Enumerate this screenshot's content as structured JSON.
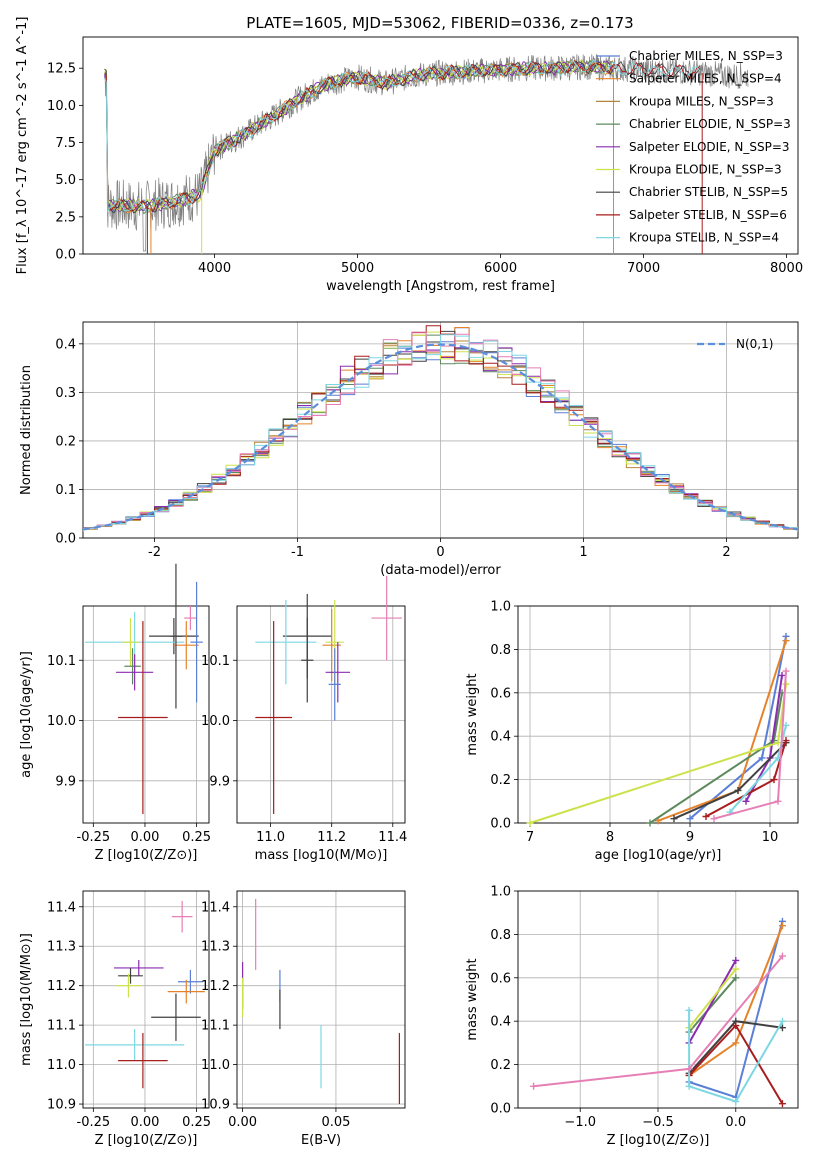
{
  "figure_title": "PLATE=1605, MJD=53062, FIBERID=0336, z=0.173",
  "colors": {
    "chabrier_miles": "#5b7fd6",
    "salpeter_miles": "#e6832a",
    "kroupa_miles": "#b5853b",
    "chabrier_elodie": "#5d8a5d",
    "salpeter_elodie": "#8a2bb0",
    "kroupa_elodie": "#cde24a",
    "chabrier_stelib": "#404040",
    "salpeter_stelib": "#a81d1d",
    "kroupa_stelib": "#7dd7e2",
    "data": "#808080",
    "gaussian": "#5b8fdb",
    "pink": "#e67fb5",
    "grid": "#b0b0b0"
  },
  "chart_data": [
    {
      "id": "spectrum",
      "type": "line",
      "title": "",
      "xlabel": "wavelength [Angstrom, rest frame]",
      "ylabel": "Flux [f_λ 10^-17 erg cm^-2 s^-1 A^-1]",
      "xlim": [
        3080,
        8080
      ],
      "ylim": [
        0,
        14.6
      ],
      "xticks": [
        4000,
        5000,
        6000,
        7000,
        8000
      ],
      "yticks": [
        0.0,
        2.5,
        5.0,
        7.5,
        10.0,
        12.5
      ],
      "ytick_labels": [
        "0.0",
        "2.5",
        "5.0",
        "7.5",
        "10.0",
        "12.5"
      ],
      "grid": false,
      "legend_position": "right",
      "continuum": [
        {
          "x": 3250,
          "y": 3.3
        },
        {
          "x": 3500,
          "y": 3.2
        },
        {
          "x": 3700,
          "y": 3.5
        },
        {
          "x": 3900,
          "y": 4.0
        },
        {
          "x": 4000,
          "y": 7.0
        },
        {
          "x": 4200,
          "y": 8.0
        },
        {
          "x": 4400,
          "y": 9.2
        },
        {
          "x": 4600,
          "y": 10.5
        },
        {
          "x": 4800,
          "y": 11.5
        },
        {
          "x": 5000,
          "y": 11.9
        },
        {
          "x": 5200,
          "y": 11.5
        },
        {
          "x": 5400,
          "y": 12.0
        },
        {
          "x": 5600,
          "y": 12.2
        },
        {
          "x": 5800,
          "y": 12.3
        },
        {
          "x": 6000,
          "y": 12.4
        },
        {
          "x": 6200,
          "y": 12.5
        },
        {
          "x": 6400,
          "y": 12.5
        },
        {
          "x": 6600,
          "y": 12.6
        },
        {
          "x": 6800,
          "y": 12.5
        },
        {
          "x": 7000,
          "y": 12.4
        },
        {
          "x": 7200,
          "y": 12.3
        },
        {
          "x": 7400,
          "y": 12.2
        },
        {
          "x": 7600,
          "y": 12.0
        },
        {
          "x": 7730,
          "y": 12.0
        }
      ],
      "series": [
        {
          "name": "Chabrier MILES, N_SSP=3",
          "color": "chabrier_miles",
          "xmax": 6800
        },
        {
          "name": "Salpeter MILES, N_SSP=4",
          "color": "salpeter_miles",
          "xmax": 6800
        },
        {
          "name": "Kroupa MILES, N_SSP=3",
          "color": "kroupa_miles",
          "xmax": 6800
        },
        {
          "name": "Chabrier ELODIE, N_SSP=3",
          "color": "chabrier_elodie",
          "xmax": 6800
        },
        {
          "name": "Salpeter ELODIE, N_SSP=3",
          "color": "salpeter_elodie",
          "xmax": 6800
        },
        {
          "name": "Kroupa ELODIE, N_SSP=3",
          "color": "kroupa_elodie",
          "xmax": 6800
        },
        {
          "name": "Chabrier STELIB, N_SSP=5",
          "color": "chabrier_stelib",
          "xmax": 7400
        },
        {
          "name": "Salpeter STELIB, N_SSP=6",
          "color": "salpeter_stelib",
          "xmax": 7400
        },
        {
          "name": "Kroupa STELIB, N_SSP=4",
          "color": "kroupa_stelib",
          "xmax": 7400
        }
      ]
    },
    {
      "id": "residuals",
      "type": "line",
      "title": "",
      "xlabel": "(data-model)/error",
      "ylabel": "Normed distribution",
      "xlim": [
        -2.5,
        2.5
      ],
      "ylim": [
        0,
        0.445
      ],
      "xticks": [
        -2,
        -1,
        0,
        1,
        2
      ],
      "yticks": [
        0.0,
        0.1,
        0.2,
        0.3,
        0.4
      ],
      "grid": true,
      "legend_position": "top-right",
      "legend": [
        "N(0,1)"
      ],
      "bin_width": 0.1
    },
    {
      "id": "age_vs_Z",
      "type": "scatter",
      "xlabel": "Z [log10(Z/Z⊙)]",
      "ylabel": "age [log10(age/yr)]",
      "xlim": [
        -0.3,
        0.31
      ],
      "ylim": [
        9.83,
        10.19
      ],
      "xticks": [
        -0.25,
        0.0,
        0.25
      ],
      "xtick_labels": [
        "-0.25",
        "0.00",
        "0.25"
      ],
      "yticks": [
        9.9,
        10.0,
        10.1
      ],
      "grid": true,
      "points": [
        {
          "x": 0.22,
          "y": 10.17,
          "xerr": 0.03,
          "yerr": 0.02,
          "color": "pink"
        },
        {
          "x": 0.14,
          "y": 10.14,
          "xerr": 0.12,
          "yerr": 0.03,
          "color": "chabrier_stelib"
        },
        {
          "x": 0.2,
          "y": 10.125,
          "xerr": 0.06,
          "yerr": 0.04,
          "color": "salpeter_miles"
        },
        {
          "x": -0.05,
          "y": 10.13,
          "xerr": 0.24,
          "yerr": 0.05,
          "color": "kroupa_stelib"
        },
        {
          "x": -0.07,
          "y": 10.13,
          "xerr": 0.04,
          "yerr": 0.04,
          "color": "kroupa_elodie"
        },
        {
          "x": -0.06,
          "y": 10.09,
          "xerr": 0.04,
          "yerr": 0.03,
          "color": "chabrier_elodie"
        },
        {
          "x": -0.05,
          "y": 10.08,
          "xerr": 0.09,
          "yerr": 0.03,
          "color": "salpeter_elodie"
        },
        {
          "x": 0.25,
          "y": 10.13,
          "xerr": 0.03,
          "yerr": 0.1,
          "color": "chabrier_miles"
        },
        {
          "x": 0.15,
          "y": 10.14,
          "xerr": 0.03,
          "yerr": 0.12,
          "color": "chabrier_stelib"
        },
        {
          "x": -0.01,
          "y": 10.005,
          "xerr": 0.12,
          "yerr": 0.16,
          "color": "salpeter_stelib"
        }
      ]
    },
    {
      "id": "age_vs_mass",
      "type": "scatter",
      "xlabel": "mass [log10(M/M⊙)]",
      "ylabel": "",
      "xlim": [
        10.89,
        11.44
      ],
      "ylim": [
        9.83,
        10.19
      ],
      "xticks": [
        11.0,
        11.2,
        11.4
      ],
      "xtick_labels": [
        "11.0",
        "11.2",
        "11.4"
      ],
      "yticks": [
        9.9,
        10.0,
        10.1
      ],
      "grid": true,
      "points": [
        {
          "x": 11.38,
          "y": 10.17,
          "xerr": 0.05,
          "yerr": 0.07,
          "color": "pink"
        },
        {
          "x": 11.12,
          "y": 10.14,
          "xerr": 0.08,
          "yerr": 0.07,
          "color": "chabrier_stelib"
        },
        {
          "x": 11.2,
          "y": 10.125,
          "xerr": 0.03,
          "yerr": 0.06,
          "color": "salpeter_miles"
        },
        {
          "x": 11.05,
          "y": 10.13,
          "xerr": 0.1,
          "yerr": 0.07,
          "color": "kroupa_stelib"
        },
        {
          "x": 11.21,
          "y": 10.13,
          "xerr": 0.03,
          "yerr": 0.07,
          "color": "kroupa_elodie"
        },
        {
          "x": 11.22,
          "y": 10.08,
          "xerr": 0.04,
          "yerr": 0.05,
          "color": "salpeter_elodie"
        },
        {
          "x": 11.21,
          "y": 10.06,
          "xerr": 0.02,
          "yerr": 0.06,
          "color": "chabrier_miles"
        },
        {
          "x": 11.12,
          "y": 10.1,
          "xerr": 0.02,
          "yerr": 0.07,
          "color": "chabrier_stelib"
        },
        {
          "x": 11.01,
          "y": 10.005,
          "xerr": 0.06,
          "yerr": 0.16,
          "color": "salpeter_stelib"
        }
      ]
    },
    {
      "id": "mass_weight_vs_age",
      "type": "line",
      "xlabel": "age [log10(age/yr)]",
      "ylabel": "mass weight",
      "xlim": [
        6.85,
        10.35
      ],
      "ylim": [
        0,
        1.0
      ],
      "xticks": [
        7,
        8,
        9,
        10
      ],
      "yticks": [
        0.0,
        0.2,
        0.4,
        0.6,
        0.8,
        1.0
      ],
      "grid": true,
      "series": [
        {
          "color": "chabrier_miles",
          "points": [
            [
              9.0,
              0.02
            ],
            [
              9.9,
              0.3
            ],
            [
              10.2,
              0.86
            ]
          ]
        },
        {
          "color": "salpeter_miles",
          "points": [
            [
              8.6,
              0.01
            ],
            [
              9.6,
              0.15
            ],
            [
              10.2,
              0.84
            ]
          ]
        },
        {
          "color": "chabrier_elodie",
          "points": [
            [
              8.5,
              0.0
            ],
            [
              10.05,
              0.38
            ],
            [
              10.15,
              0.6
            ]
          ]
        },
        {
          "color": "salpeter_elodie",
          "points": [
            [
              9.7,
              0.1
            ],
            [
              10.0,
              0.3
            ],
            [
              10.15,
              0.68
            ]
          ]
        },
        {
          "color": "kroupa_elodie",
          "points": [
            [
              7.0,
              0.0
            ],
            [
              10.1,
              0.37
            ],
            [
              10.2,
              0.64
            ]
          ]
        },
        {
          "color": "chabrier_stelib",
          "points": [
            [
              8.8,
              0.02
            ],
            [
              9.6,
              0.15
            ],
            [
              10.2,
              0.37
            ]
          ]
        },
        {
          "color": "salpeter_stelib",
          "points": [
            [
              9.2,
              0.03
            ],
            [
              10.05,
              0.2
            ],
            [
              10.2,
              0.38
            ]
          ]
        },
        {
          "color": "kroupa_stelib",
          "points": [
            [
              9.5,
              0.05
            ],
            [
              10.1,
              0.3
            ],
            [
              10.2,
              0.45
            ]
          ]
        },
        {
          "color": "pink",
          "points": [
            [
              9.3,
              0.02
            ],
            [
              10.1,
              0.1
            ],
            [
              10.2,
              0.7
            ]
          ]
        }
      ]
    },
    {
      "id": "mass_vs_Z",
      "type": "scatter",
      "xlabel": "Z [log10(Z/Z⊙)]",
      "ylabel": "mass [log10(M/M⊙)]",
      "xlim": [
        -0.3,
        0.31
      ],
      "ylim": [
        10.89,
        11.44
      ],
      "xticks": [
        -0.25,
        0.0,
        0.25
      ],
      "xtick_labels": [
        "-0.25",
        "0.00",
        "0.25"
      ],
      "yticks": [
        10.9,
        11.0,
        11.1,
        11.2,
        11.3,
        11.4
      ],
      "grid": true,
      "points": [
        {
          "x": 0.18,
          "y": 11.375,
          "xerr": 0.05,
          "yerr": 0.04,
          "color": "pink"
        },
        {
          "x": -0.03,
          "y": 11.245,
          "xerr": 0.12,
          "yerr": 0.02,
          "color": "salpeter_elodie"
        },
        {
          "x": -0.07,
          "y": 11.225,
          "xerr": 0.06,
          "yerr": 0.02,
          "color": "chabrier_stelib"
        },
        {
          "x": -0.08,
          "y": 11.2,
          "xerr": 0.06,
          "yerr": 0.03,
          "color": "kroupa_elodie"
        },
        {
          "x": 0.22,
          "y": 11.21,
          "xerr": 0.06,
          "yerr": 0.03,
          "color": "chabrier_miles"
        },
        {
          "x": 0.2,
          "y": 11.185,
          "xerr": 0.09,
          "yerr": 0.03,
          "color": "salpeter_miles"
        },
        {
          "x": 0.15,
          "y": 11.12,
          "xerr": 0.12,
          "yerr": 0.06,
          "color": "chabrier_stelib"
        },
        {
          "x": -0.05,
          "y": 11.05,
          "xerr": 0.24,
          "yerr": 0.04,
          "color": "kroupa_stelib"
        },
        {
          "x": -0.01,
          "y": 11.01,
          "xerr": 0.12,
          "yerr": 0.07,
          "color": "salpeter_stelib"
        }
      ]
    },
    {
      "id": "mass_vs_ebv",
      "type": "scatter",
      "xlabel": "E(B-V)",
      "ylabel": "",
      "xlim": [
        -0.003,
        0.087
      ],
      "ylim": [
        10.89,
        11.44
      ],
      "xticks": [
        0.0,
        0.05
      ],
      "xtick_labels": [
        "0.00",
        "0.05"
      ],
      "yticks": [
        10.9,
        11.0,
        11.1,
        11.2,
        11.3,
        11.4
      ],
      "grid": true,
      "points": [
        {
          "x": 0.007,
          "y": 11.33,
          "yerr": 0.09,
          "color": "pink"
        },
        {
          "x": 0.0,
          "y": 11.2,
          "yerr": 0.06,
          "color": "salpeter_elodie"
        },
        {
          "x": 0.0,
          "y": 11.17,
          "yerr": 0.05,
          "color": "kroupa_elodie"
        },
        {
          "x": 0.02,
          "y": 11.2,
          "yerr": 0.04,
          "color": "chabrier_miles"
        },
        {
          "x": 0.02,
          "y": 11.14,
          "yerr": 0.05,
          "color": "chabrier_stelib"
        },
        {
          "x": 0.042,
          "y": 11.02,
          "yerr": 0.08,
          "color": "kroupa_stelib"
        },
        {
          "x": 0.084,
          "y": 10.99,
          "yerr": 0.09,
          "color": "salpeter_stelib"
        }
      ]
    },
    {
      "id": "mass_weight_vs_Z",
      "type": "line",
      "xlabel": "Z [log10(Z/Z⊙)]",
      "ylabel": "mass weight",
      "xlim": [
        -1.4,
        0.4
      ],
      "ylim": [
        0,
        1.0
      ],
      "xticks": [
        -1.0,
        -0.5,
        0.0
      ],
      "xtick_labels": [
        "−1.0",
        "−0.5",
        "0.0"
      ],
      "yticks": [
        0.0,
        0.2,
        0.4,
        0.6,
        0.8,
        1.0
      ],
      "grid": true,
      "series": [
        {
          "color": "chabrier_miles",
          "points": [
            [
              -0.3,
              0.12
            ],
            [
              0.0,
              0.05
            ],
            [
              0.3,
              0.86
            ]
          ]
        },
        {
          "color": "salpeter_miles",
          "points": [
            [
              -0.3,
              0.15
            ],
            [
              0.0,
              0.3
            ],
            [
              0.3,
              0.84
            ]
          ]
        },
        {
          "color": "chabrier_elodie",
          "points": [
            [
              -0.3,
              0.35
            ],
            [
              0.0,
              0.6
            ]
          ]
        },
        {
          "color": "salpeter_elodie",
          "points": [
            [
              -0.3,
              0.3
            ],
            [
              0.0,
              0.68
            ]
          ]
        },
        {
          "color": "kroupa_elodie",
          "points": [
            [
              -0.3,
              0.37
            ],
            [
              0.0,
              0.64
            ]
          ]
        },
        {
          "color": "chabrier_stelib",
          "points": [
            [
              -0.3,
              0.16
            ],
            [
              0.0,
              0.4
            ],
            [
              0.3,
              0.37
            ]
          ]
        },
        {
          "color": "salpeter_stelib",
          "points": [
            [
              -0.3,
              0.15
            ],
            [
              0.0,
              0.38
            ],
            [
              0.3,
              0.02
            ]
          ]
        },
        {
          "color": "kroupa_stelib",
          "points": [
            [
              -0.3,
              0.45
            ],
            [
              -0.3,
              0.1
            ],
            [
              0.0,
              0.03
            ],
            [
              0.3,
              0.4
            ]
          ]
        },
        {
          "color": "pink",
          "points": [
            [
              -1.3,
              0.1
            ],
            [
              -0.3,
              0.18
            ],
            [
              0.3,
              0.7
            ]
          ]
        }
      ]
    }
  ]
}
